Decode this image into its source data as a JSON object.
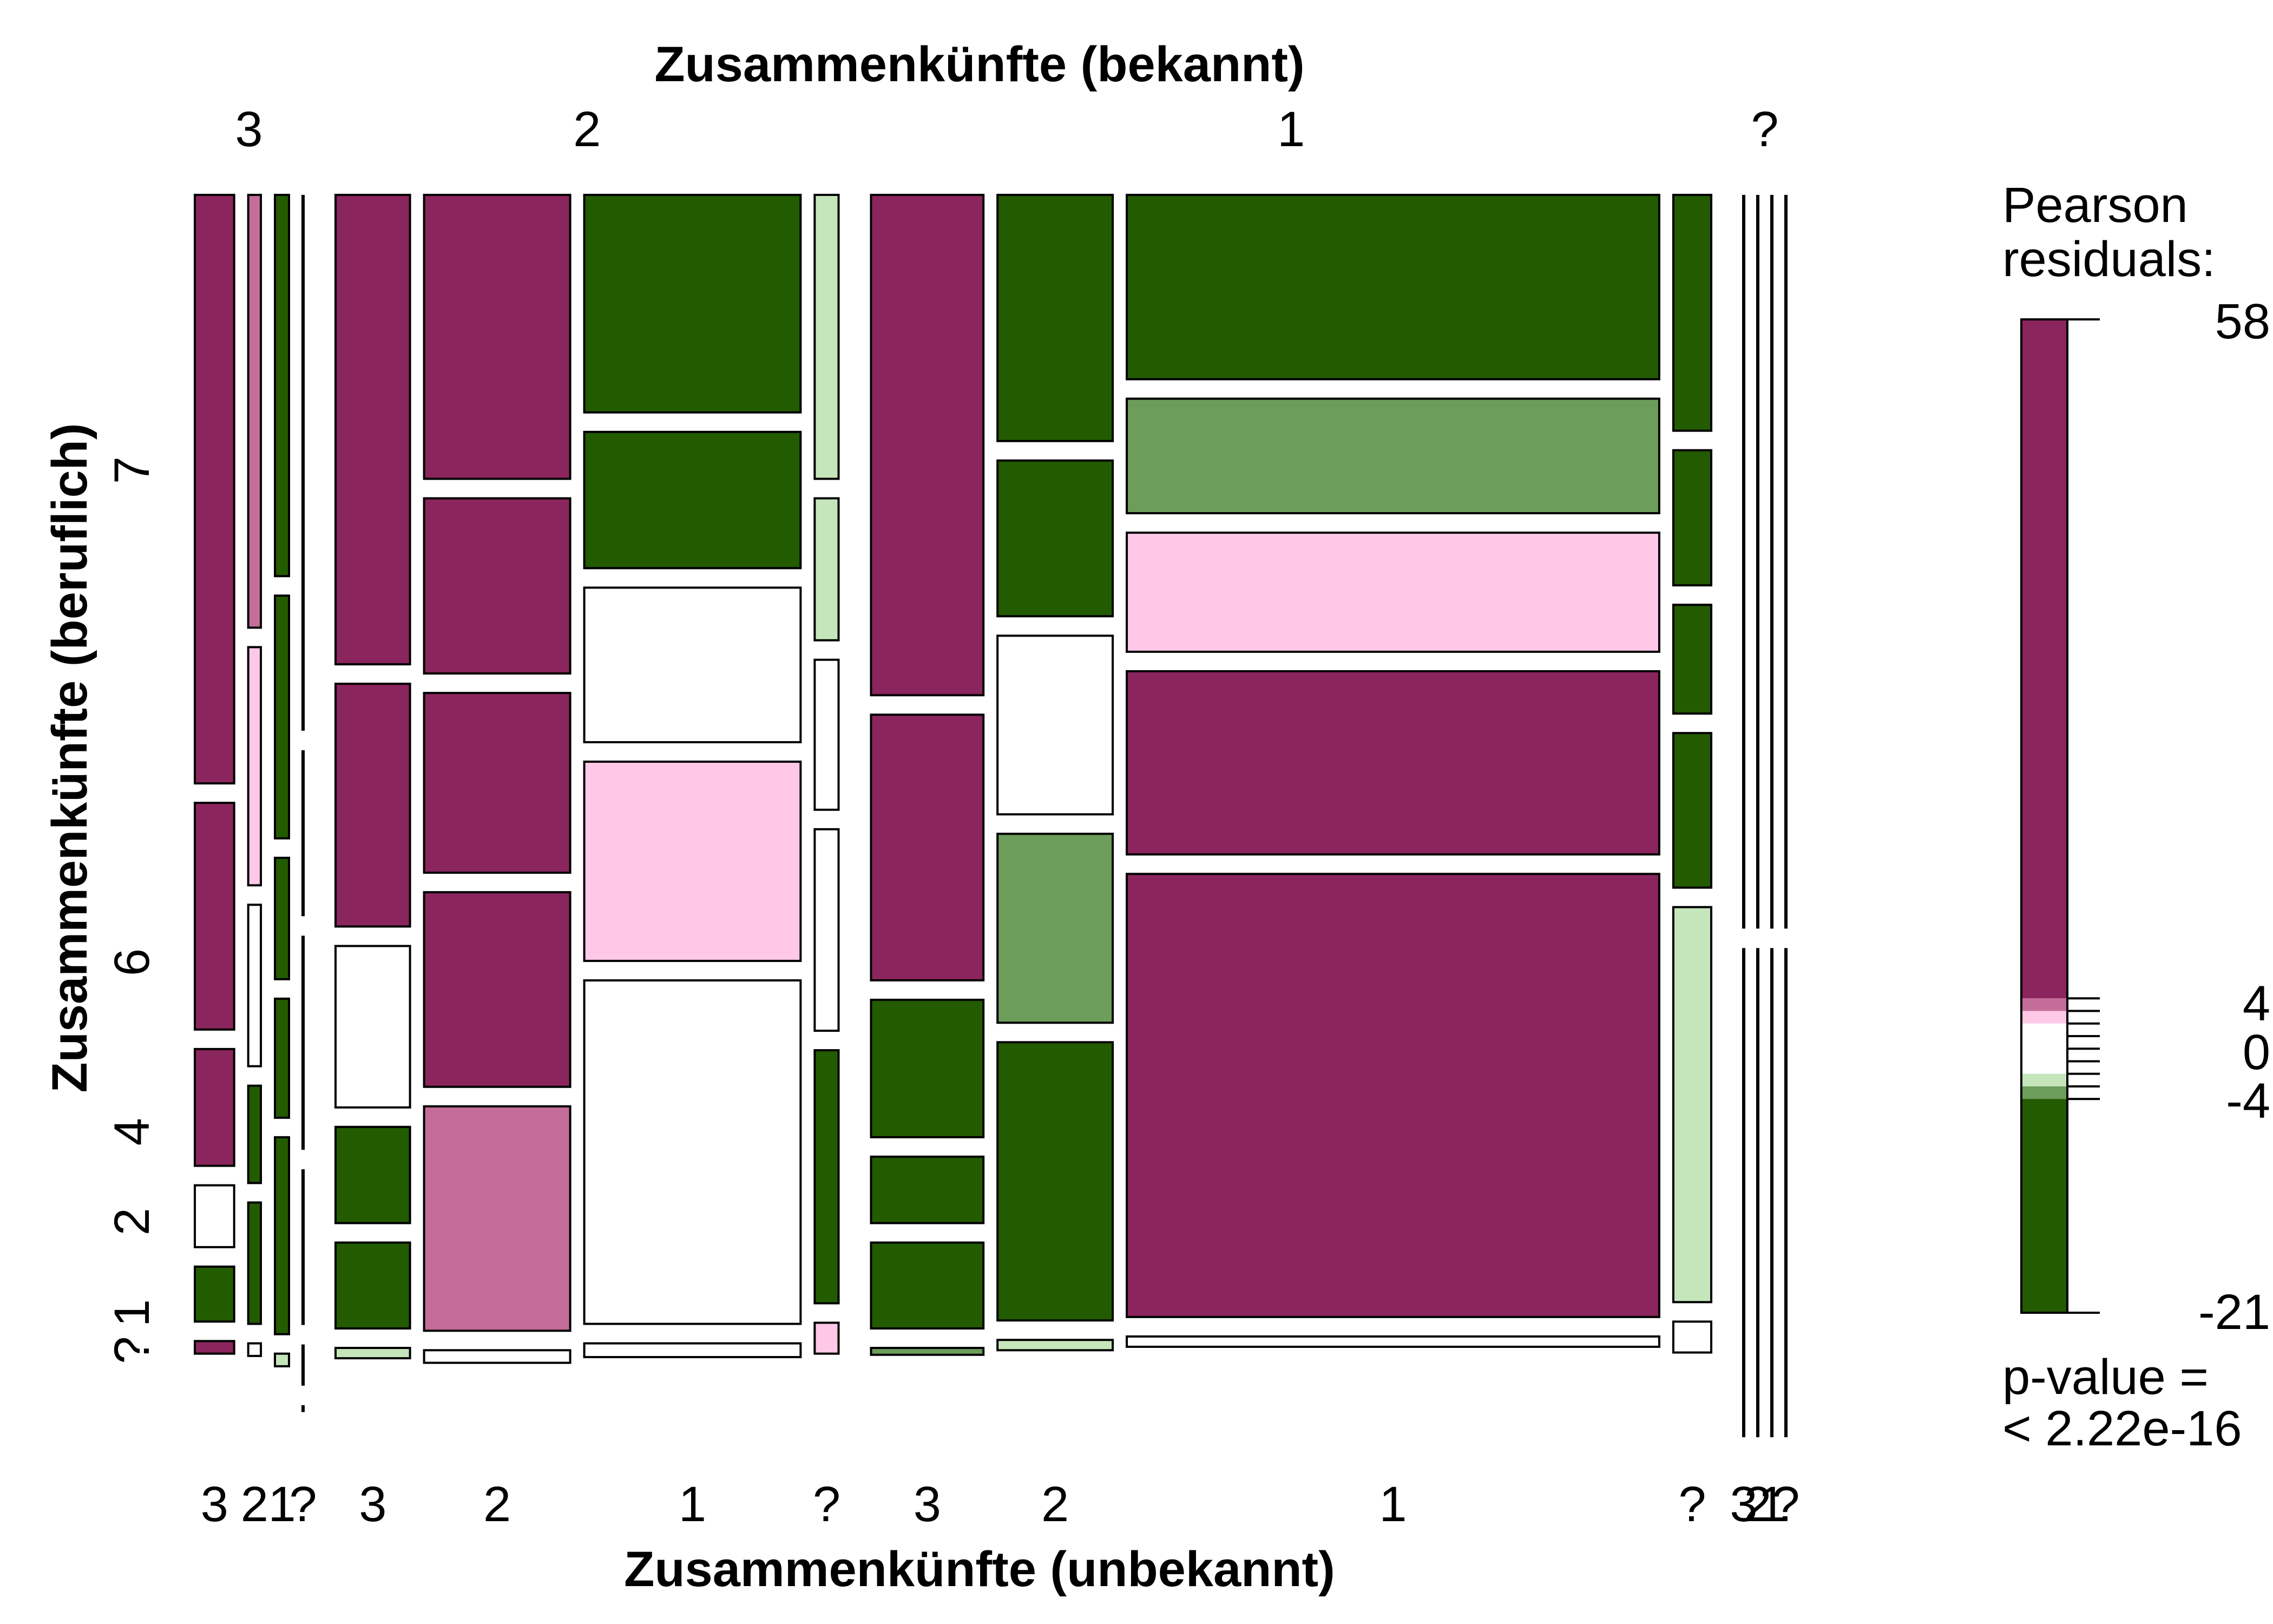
{
  "chart_data": {
    "type": "mosaic",
    "title": "",
    "top_axis_title": "Zusammenkünfte (bekannt)",
    "bottom_axis_title": "Zusammenkünfte (unbekannt)",
    "left_axis_title": "Zusammenkünfte (beruflich)",
    "top_levels": [
      "3",
      "2",
      "1",
      "?"
    ],
    "bottom_levels_per_group": [
      [
        "3",
        "2",
        "1",
        "?"
      ],
      [
        "3",
        "2",
        "1",
        "?"
      ],
      [
        "3",
        "2",
        "1",
        "?"
      ],
      [
        "3",
        "2",
        "1",
        "?"
      ]
    ],
    "left_levels": [
      "?",
      "1",
      "2",
      "4",
      "6",
      "7"
    ],
    "legend": {
      "title_line1": "Pearson",
      "title_line2": "residuals:",
      "max_label": "58",
      "tick4_label": "4",
      "tick0_label": "0",
      "tickm4_label": "-4",
      "min_label": "-21",
      "range": [
        -21,
        58
      ],
      "pvalue_line1": "p-value =",
      "pvalue_line2": "< 2.22e-16"
    },
    "colors": {
      "pos_strong": "#8b255d",
      "pos_medium": "#c46d9a",
      "pos_weak": "#fec8e6",
      "neutral": "#ffffff",
      "neg_weak": "#c5e6bb",
      "neg_medium": "#6c9d5a",
      "neg_strong": "#235b00"
    },
    "cells_note": "proportions are relative heights of the beruflich levels within each column, listed top (7) to bottom (?)",
    "columns": [
      {
        "top": "3",
        "bottom": "3",
        "width": 0.028,
        "cells": [
          {
            "level": "7",
            "prop": 0.514,
            "res": "pos_strong"
          },
          {
            "level": "6",
            "prop": 0.198,
            "res": "pos_strong"
          },
          {
            "level": "4",
            "prop": 0.102,
            "res": "pos_strong"
          },
          {
            "level": "2",
            "prop": 0.054,
            "res": "neutral"
          },
          {
            "level": "1",
            "prop": 0.048,
            "res": "neg_strong"
          },
          {
            "level": "?",
            "prop": 0.011,
            "res": "pos_strong"
          }
        ]
      },
      {
        "top": "3",
        "bottom": "2",
        "width": 0.009,
        "cells": [
          {
            "level": "7",
            "prop": 0.378,
            "res": "pos_medium"
          },
          {
            "level": "6",
            "prop": 0.208,
            "res": "pos_weak"
          },
          {
            "level": "4",
            "prop": 0.141,
            "res": "neutral"
          },
          {
            "level": "2",
            "prop": 0.085,
            "res": "neg_strong"
          },
          {
            "level": "1",
            "prop": 0.106,
            "res": "neg_strong"
          },
          {
            "level": "?",
            "prop": 0.011,
            "res": "neutral"
          }
        ]
      },
      {
        "top": "3",
        "bottom": "1",
        "width": 0.01,
        "cells": [
          {
            "level": "7",
            "prop": 0.333,
            "res": "neg_strong"
          },
          {
            "level": "6",
            "prop": 0.212,
            "res": "neg_strong"
          },
          {
            "level": "4",
            "prop": 0.106,
            "res": "neg_strong"
          },
          {
            "level": "2",
            "prop": 0.104,
            "res": "neg_strong"
          },
          {
            "level": "1",
            "prop": 0.172,
            "res": "neg_strong"
          },
          {
            "level": "?",
            "prop": 0.011,
            "res": "neg_weak"
          }
        ]
      },
      {
        "top": "3",
        "bottom": "?",
        "width": 0,
        "cells": [
          {
            "level": "7",
            "prop": 0.468,
            "res": "neg_strong"
          },
          {
            "level": "6",
            "prop": 0.145,
            "res": "neg_strong"
          },
          {
            "level": "4",
            "prop": 0.187,
            "res": "neg_strong"
          },
          {
            "level": "2",
            "prop": 0.136,
            "res": "neg_strong"
          },
          {
            "level": "1",
            "prop": 0.036,
            "res": "neg_strong"
          },
          {
            "level": "?",
            "prop": 0.006,
            "res": "neg_strong"
          }
        ]
      },
      {
        "top": "2",
        "bottom": "3",
        "width": 0.053,
        "cells": [
          {
            "level": "7",
            "prop": 0.41,
            "res": "pos_strong"
          },
          {
            "level": "6",
            "prop": 0.212,
            "res": "pos_strong"
          },
          {
            "level": "4",
            "prop": 0.141,
            "res": "neutral"
          },
          {
            "level": "2",
            "prop": 0.084,
            "res": "neg_strong"
          },
          {
            "level": "1",
            "prop": 0.075,
            "res": "neg_strong"
          },
          {
            "level": "?",
            "prop": 0.009,
            "res": "neg_weak"
          }
        ]
      },
      {
        "top": "2",
        "bottom": "2",
        "width": 0.104,
        "cells": [
          {
            "level": "7",
            "prop": 0.248,
            "res": "pos_strong"
          },
          {
            "level": "6",
            "prop": 0.153,
            "res": "pos_strong"
          },
          {
            "level": "4",
            "prop": 0.157,
            "res": "pos_strong"
          },
          {
            "level": "2",
            "prop": 0.17,
            "res": "pos_strong"
          },
          {
            "level": "1",
            "prop": 0.196,
            "res": "pos_medium"
          },
          {
            "level": "?",
            "prop": 0.011,
            "res": "neutral"
          }
        ]
      },
      {
        "top": "2",
        "bottom": "1",
        "width": 0.154,
        "cells": [
          {
            "level": "7",
            "prop": 0.19,
            "res": "neg_strong"
          },
          {
            "level": "6",
            "prop": 0.119,
            "res": "neg_strong"
          },
          {
            "level": "4",
            "prop": 0.135,
            "res": "neutral"
          },
          {
            "level": "2",
            "prop": 0.174,
            "res": "pos_weak"
          },
          {
            "level": "1",
            "prop": 0.3,
            "res": "neutral"
          },
          {
            "level": "?",
            "prop": 0.012,
            "res": "neutral"
          }
        ]
      },
      {
        "top": "2",
        "bottom": "?",
        "width": 0.017,
        "cells": [
          {
            "level": "7",
            "prop": 0.248,
            "res": "neg_weak"
          },
          {
            "level": "6",
            "prop": 0.124,
            "res": "neg_weak"
          },
          {
            "level": "4",
            "prop": 0.131,
            "res": "neutral"
          },
          {
            "level": "2",
            "prop": 0.176,
            "res": "neutral"
          },
          {
            "level": "1",
            "prop": 0.221,
            "res": "neg_strong"
          },
          {
            "level": "?",
            "prop": 0.027,
            "res": "pos_weak"
          }
        ]
      },
      {
        "top": "1",
        "bottom": "3",
        "width": 0.08,
        "cells": [
          {
            "level": "7",
            "prop": 0.437,
            "res": "pos_strong"
          },
          {
            "level": "6",
            "prop": 0.232,
            "res": "pos_strong"
          },
          {
            "level": "4",
            "prop": 0.12,
            "res": "neg_strong"
          },
          {
            "level": "2",
            "prop": 0.058,
            "res": "neg_strong"
          },
          {
            "level": "1",
            "prop": 0.075,
            "res": "neg_strong"
          },
          {
            "level": "?",
            "prop": 0.006,
            "res": "neg_medium"
          }
        ]
      },
      {
        "top": "1",
        "bottom": "2",
        "width": 0.082,
        "cells": [
          {
            "level": "7",
            "prop": 0.215,
            "res": "neg_strong"
          },
          {
            "level": "6",
            "prop": 0.136,
            "res": "neg_strong"
          },
          {
            "level": "4",
            "prop": 0.156,
            "res": "neutral"
          },
          {
            "level": "2",
            "prop": 0.165,
            "res": "neg_medium"
          },
          {
            "level": "1",
            "prop": 0.243,
            "res": "neg_strong"
          },
          {
            "level": "?",
            "prop": 0.009,
            "res": "neg_weak"
          }
        ]
      },
      {
        "top": "1",
        "bottom": "1",
        "width": 0.379,
        "cells": [
          {
            "level": "7",
            "prop": 0.161,
            "res": "neg_strong"
          },
          {
            "level": "6",
            "prop": 0.1,
            "res": "neg_medium"
          },
          {
            "level": "4",
            "prop": 0.104,
            "res": "pos_weak"
          },
          {
            "level": "2",
            "prop": 0.16,
            "res": "pos_strong"
          },
          {
            "level": "1",
            "prop": 0.387,
            "res": "pos_strong"
          },
          {
            "level": "?",
            "prop": 0.009,
            "res": "neutral"
          }
        ]
      },
      {
        "top": "1",
        "bottom": "?",
        "width": 0.027,
        "cells": [
          {
            "level": "7",
            "prop": 0.206,
            "res": "neg_strong"
          },
          {
            "level": "6",
            "prop": 0.118,
            "res": "neg_strong"
          },
          {
            "level": "4",
            "prop": 0.095,
            "res": "neg_strong"
          },
          {
            "level": "2",
            "prop": 0.135,
            "res": "neg_strong"
          },
          {
            "level": "1",
            "prop": 0.345,
            "res": "neg_weak"
          },
          {
            "level": "?",
            "prop": 0.027,
            "res": "neutral"
          }
        ]
      },
      {
        "top": "?",
        "bottom": "3",
        "width": 0,
        "cells": [
          {
            "level": "7",
            "prop": 0.6,
            "res": "neg_strong"
          },
          {
            "level": "?",
            "prop": 0.4,
            "res": "neg_strong"
          }
        ]
      },
      {
        "top": "?",
        "bottom": "2",
        "width": 0,
        "cells": [
          {
            "level": "7",
            "prop": 0.6,
            "res": "neg_strong"
          },
          {
            "level": "?",
            "prop": 0.4,
            "res": "neg_strong"
          }
        ]
      },
      {
        "top": "?",
        "bottom": "1",
        "width": 0,
        "cells": [
          {
            "level": "7",
            "prop": 0.6,
            "res": "neg_strong"
          },
          {
            "level": "?",
            "prop": 0.4,
            "res": "neg_strong"
          }
        ]
      },
      {
        "top": "?",
        "bottom": "?",
        "width": 0,
        "cells": [
          {
            "level": "7",
            "prop": 0.6,
            "res": "neg_strong"
          },
          {
            "level": "?",
            "prop": 0.4,
            "res": "neg_strong"
          }
        ]
      }
    ]
  }
}
